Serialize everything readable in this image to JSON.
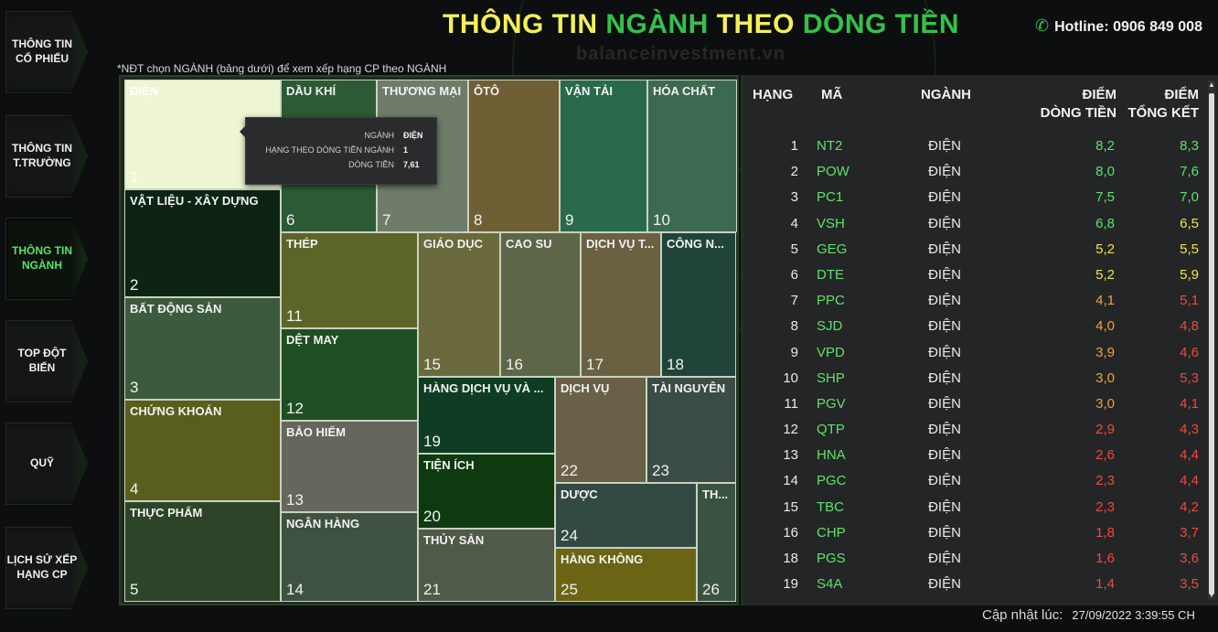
{
  "sidebar": {
    "items": [
      {
        "label": "THÔNG TIN\nCỔ PHIẾU",
        "active": false
      },
      {
        "label": "THÔNG TIN\nT.TRƯỜNG",
        "active": false
      },
      {
        "label": "THÔNG TIN\nNGÀNH",
        "active": true
      },
      {
        "label": "TOP ĐỘT\nBIẾN",
        "active": false
      },
      {
        "label": "QUỸ",
        "active": false
      },
      {
        "label": "LỊCH SỬ XẾP\nHẠNG CP",
        "active": false
      }
    ]
  },
  "header": {
    "title_parts": [
      {
        "text": "THÔNG TIN ",
        "color": "#f3ef5a"
      },
      {
        "text": "NGÀNH ",
        "color": "#33c24a"
      },
      {
        "text": "THEO ",
        "color": "#f3ef5a"
      },
      {
        "text": "DÒNG TIỀN",
        "color": "#33c24a"
      }
    ],
    "hotline": "Hotline: 0906 849 008",
    "hotline_icon": "phone-icon",
    "watermark": "balanceinvestment.vn"
  },
  "hint": "*NĐT chọn NGÀNH (bảng dưới) để xem xếp hạng CP theo NGÀNH",
  "treemap": {
    "tiles": [
      {
        "name": "ĐIỆN",
        "rank": "1",
        "color": "#eef5d2",
        "selected": true
      },
      {
        "name": "VẬT LIỆU - XÂY DỰNG",
        "rank": "2",
        "color": "#0d2414"
      },
      {
        "name": "BẤT ĐỘNG SẢN",
        "rank": "3",
        "color": "#3c5a3e"
      },
      {
        "name": "CHỨNG KHOÁN",
        "rank": "4",
        "color": "#5a5e1c"
      },
      {
        "name": "THỰC PHẨM",
        "rank": "5",
        "color": "#2e4429"
      },
      {
        "name": "DẦU KHÍ",
        "rank": "6",
        "color": "#2c5a34"
      },
      {
        "name": "THƯƠNG MẠI",
        "rank": "7",
        "color": "#6f7c6a"
      },
      {
        "name": "ÔTÔ",
        "rank": "8",
        "color": "#705e34"
      },
      {
        "name": "VẬN TẢI",
        "rank": "9",
        "color": "#2a6a4c"
      },
      {
        "name": "HÓA CHẤT",
        "rank": "10",
        "color": "#3c6a50"
      },
      {
        "name": "THÉP",
        "rank": "11",
        "color": "#5c6428"
      },
      {
        "name": "GIÁO DỤC",
        "rank": "15",
        "color": "#6a6a3c"
      },
      {
        "name": "CAO SU",
        "rank": "16",
        "color": "#5e6648"
      },
      {
        "name": "DỊCH VỤ T...",
        "rank": "17",
        "color": "#6a6042"
      },
      {
        "name": "CÔNG N...",
        "rank": "18",
        "color": "#20443a"
      },
      {
        "name": "DỆT MAY",
        "rank": "12",
        "color": "#1f4e22"
      },
      {
        "name": "BẢO HIỂM",
        "rank": "13",
        "color": "#65665c"
      },
      {
        "name": "NGÂN HÀNG",
        "rank": "14",
        "color": "#3f5140"
      },
      {
        "name": "HÀNG DỊCH VỤ VÀ ...",
        "rank": "19",
        "color": "#0f3d24"
      },
      {
        "name": "TIỆN ÍCH",
        "rank": "20",
        "color": "#0e3a10"
      },
      {
        "name": "THỦY SẢN",
        "rank": "21",
        "color": "#505a48"
      },
      {
        "name": "DỊCH VỤ",
        "rank": "22",
        "color": "#6a6048"
      },
      {
        "name": "TÀI NGUYÊN",
        "rank": "23",
        "color": "#3b4c44"
      },
      {
        "name": "DƯỢC",
        "rank": "24",
        "color": "#334a42"
      },
      {
        "name": "HÀNG KHÔNG",
        "rank": "25",
        "color": "#6a6414"
      },
      {
        "name": "TH...",
        "rank": "26",
        "color": "#3a5240"
      }
    ],
    "tooltip": {
      "rows": [
        {
          "key": "NGÀNH",
          "value": "ĐIỆN"
        },
        {
          "key": "HẠNG THEO DÒNG TIỀN NGÀNH",
          "value": "1"
        },
        {
          "key": "DÒNG TIỀN",
          "value": "7,61"
        }
      ]
    }
  },
  "table": {
    "headers": {
      "rank": "HẠNG",
      "code": "MÃ",
      "industry": "NGÀNH",
      "flow": "ĐIỂM\nDÒNG TIỀN",
      "total": "ĐIỂM\nTỔNG KẾT"
    },
    "score_colors": {
      "high": "#5be36a",
      "mid": "#f0e24a",
      "midlow": "#f0a23a",
      "low": "#ee4a3e"
    },
    "rows": [
      {
        "rank": "1",
        "code": "NT2",
        "industry": "ĐIỆN",
        "flow": "8,2",
        "flow_color": "high",
        "total": "8,3",
        "total_color": "high"
      },
      {
        "rank": "2",
        "code": "POW",
        "industry": "ĐIỆN",
        "flow": "8,0",
        "flow_color": "high",
        "total": "7,6",
        "total_color": "high"
      },
      {
        "rank": "3",
        "code": "PC1",
        "industry": "ĐIỆN",
        "flow": "7,5",
        "flow_color": "high",
        "total": "7,0",
        "total_color": "high"
      },
      {
        "rank": "4",
        "code": "VSH",
        "industry": "ĐIỆN",
        "flow": "6,8",
        "flow_color": "high",
        "total": "6,5",
        "total_color": "mid"
      },
      {
        "rank": "5",
        "code": "GEG",
        "industry": "ĐIỆN",
        "flow": "5,2",
        "flow_color": "mid",
        "total": "5,5",
        "total_color": "mid"
      },
      {
        "rank": "6",
        "code": "DTE",
        "industry": "ĐIỆN",
        "flow": "5,2",
        "flow_color": "mid",
        "total": "5,9",
        "total_color": "mid"
      },
      {
        "rank": "7",
        "code": "PPC",
        "industry": "ĐIỆN",
        "flow": "4,1",
        "flow_color": "midlow",
        "total": "5,1",
        "total_color": "low"
      },
      {
        "rank": "8",
        "code": "SJD",
        "industry": "ĐIỆN",
        "flow": "4,0",
        "flow_color": "midlow",
        "total": "4,8",
        "total_color": "low"
      },
      {
        "rank": "9",
        "code": "VPD",
        "industry": "ĐIỆN",
        "flow": "3,9",
        "flow_color": "midlow",
        "total": "4,6",
        "total_color": "low"
      },
      {
        "rank": "10",
        "code": "SHP",
        "industry": "ĐIỆN",
        "flow": "3,0",
        "flow_color": "midlow",
        "total": "5,3",
        "total_color": "low"
      },
      {
        "rank": "11",
        "code": "PGV",
        "industry": "ĐIỆN",
        "flow": "3,0",
        "flow_color": "midlow",
        "total": "4,1",
        "total_color": "low"
      },
      {
        "rank": "12",
        "code": "QTP",
        "industry": "ĐIỆN",
        "flow": "2,9",
        "flow_color": "low",
        "total": "4,3",
        "total_color": "low"
      },
      {
        "rank": "13",
        "code": "HNA",
        "industry": "ĐIỆN",
        "flow": "2,6",
        "flow_color": "low",
        "total": "4,4",
        "total_color": "low"
      },
      {
        "rank": "14",
        "code": "PGC",
        "industry": "ĐIỆN",
        "flow": "2,3",
        "flow_color": "low",
        "total": "4,4",
        "total_color": "low"
      },
      {
        "rank": "15",
        "code": "TBC",
        "industry": "ĐIỆN",
        "flow": "2,3",
        "flow_color": "low",
        "total": "4,2",
        "total_color": "low"
      },
      {
        "rank": "16",
        "code": "CHP",
        "industry": "ĐIỆN",
        "flow": "1,8",
        "flow_color": "low",
        "total": "3,7",
        "total_color": "low"
      },
      {
        "rank": "18",
        "code": "PGS",
        "industry": "ĐIỆN",
        "flow": "1,6",
        "flow_color": "low",
        "total": "3,6",
        "total_color": "low"
      },
      {
        "rank": "19",
        "code": "S4A",
        "industry": "ĐIỆN",
        "flow": "1,4",
        "flow_color": "low",
        "total": "3,5",
        "total_color": "low"
      }
    ]
  },
  "footer": {
    "updated_label": "Cập nhật lúc:",
    "updated_value": "27/09/2022 3:39:55 CH"
  }
}
